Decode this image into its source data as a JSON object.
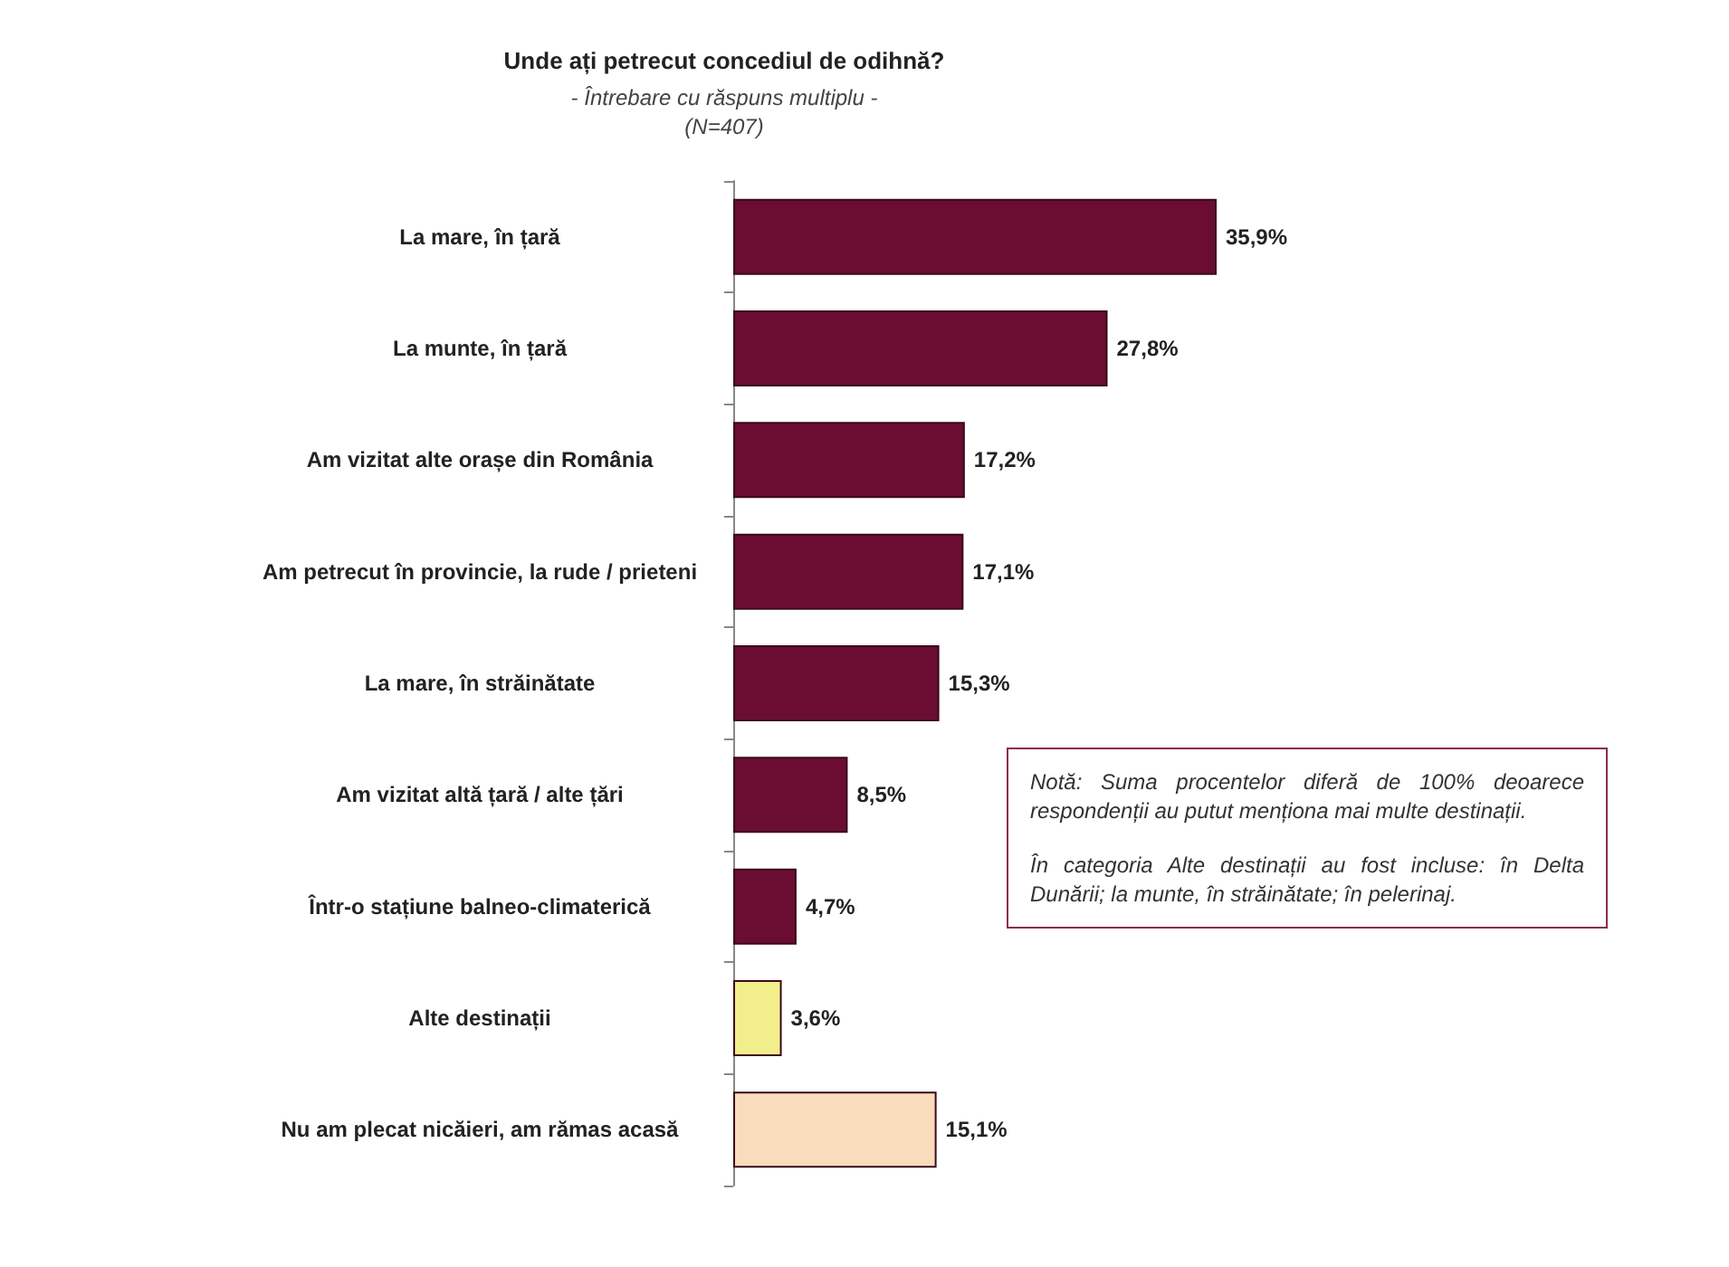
{
  "chart_data": {
    "type": "bar",
    "orientation": "horizontal",
    "title": "Unde ați petrecut concediul de odihnă?",
    "subtitle": "- Întrebare cu răspuns multiplu -\n(N=407)",
    "categories": [
      "La mare, în țară",
      "La munte, în țară",
      "Am vizitat alte orașe din România",
      "Am petrecut în provincie, la rude / prieteni",
      "La mare, în străinătate",
      "Am vizitat altă țară / alte țări",
      "Într-o stațiune balneo-climaterică",
      "Alte destinații",
      "Nu am plecat nicăieri, am rămas acasă"
    ],
    "values": [
      35.9,
      27.8,
      17.2,
      17.1,
      15.3,
      8.5,
      4.7,
      3.6,
      15.1
    ],
    "value_labels": [
      "35,9%",
      "27,8%",
      "17,2%",
      "17,1%",
      "15,3%",
      "8,5%",
      "4,7%",
      "3,6%",
      "15,1%"
    ],
    "colors": [
      "#6b0d33",
      "#6b0d33",
      "#6b0d33",
      "#6b0d33",
      "#6b0d33",
      "#6b0d33",
      "#6b0d33",
      "#f3ee8c",
      "#f8dcbc"
    ],
    "annotations": [
      "Notă: Suma procentelor diferă de 100% deoarece respondenții au putut menționa mai multe destinații.",
      "În categoria Alte destinații au fost incluse: în Delta Dunării; la munte, în străinătate; în pelerinaj."
    ]
  }
}
